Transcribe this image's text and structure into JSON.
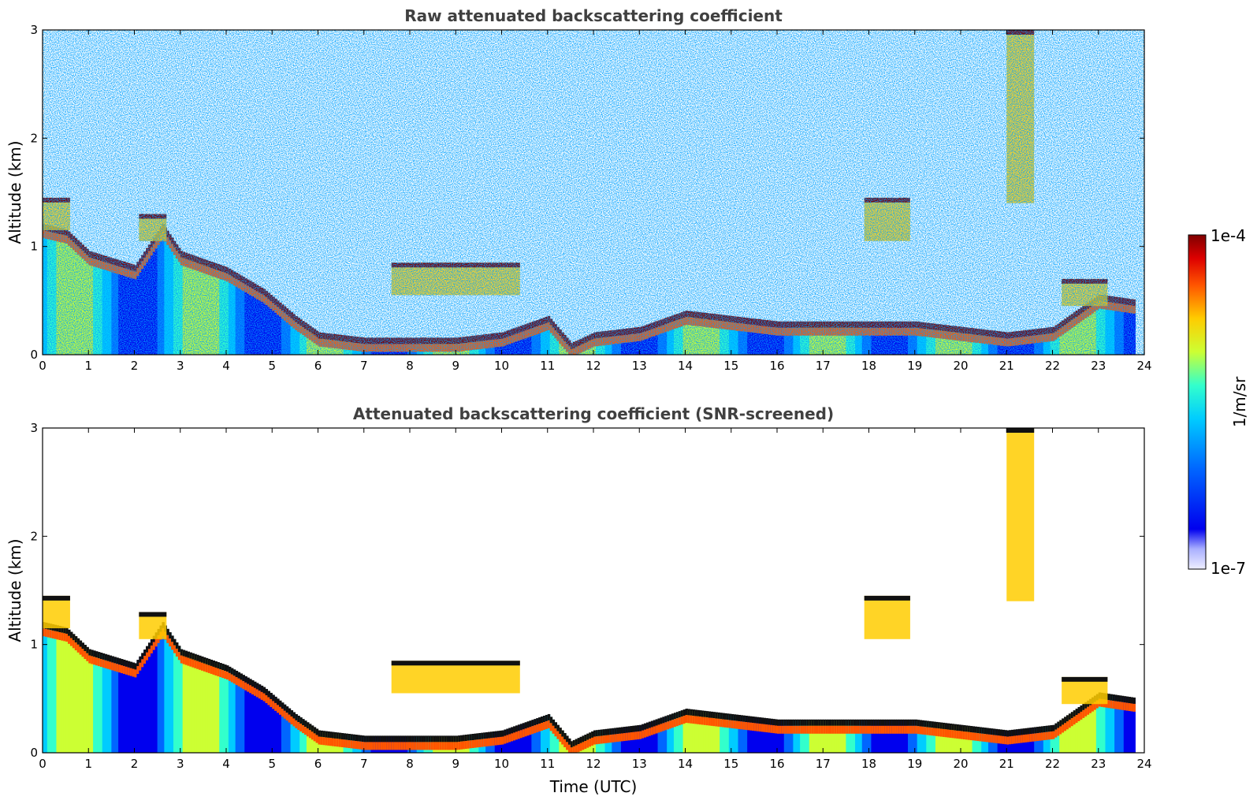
{
  "chart_data": [
    {
      "type": "heatmap",
      "title": "Raw attenuated backscattering coefficient",
      "xlabel": "",
      "ylabel": "Altitude (km)",
      "xlim": [
        0,
        24
      ],
      "ylim": [
        0,
        3
      ],
      "xticks": [
        "0",
        "1",
        "2",
        "3",
        "4",
        "5",
        "6",
        "7",
        "8",
        "9",
        "10",
        "11",
        "12",
        "13",
        "14",
        "15",
        "16",
        "17",
        "18",
        "19",
        "20",
        "21",
        "22",
        "23",
        "24"
      ],
      "yticks": [
        "0",
        "1",
        "2",
        "3"
      ],
      "noise": "high",
      "boundary_layer_top_km": [
        [
          0,
          1.2
        ],
        [
          0.5,
          1.15
        ],
        [
          1,
          0.95
        ],
        [
          2,
          0.82
        ],
        [
          2.6,
          1.2
        ],
        [
          3,
          0.95
        ],
        [
          4,
          0.8
        ],
        [
          4.8,
          0.6
        ],
        [
          5.5,
          0.35
        ],
        [
          6,
          0.2
        ],
        [
          7,
          0.15
        ],
        [
          8,
          0.15
        ],
        [
          9,
          0.15
        ],
        [
          10,
          0.2
        ],
        [
          11,
          0.35
        ],
        [
          11.5,
          0.1
        ],
        [
          12,
          0.2
        ],
        [
          13,
          0.25
        ],
        [
          14,
          0.4
        ],
        [
          15,
          0.35
        ],
        [
          16,
          0.3
        ],
        [
          17,
          0.3
        ],
        [
          18,
          0.3
        ],
        [
          19,
          0.3
        ],
        [
          20,
          0.25
        ],
        [
          21,
          0.2
        ],
        [
          22,
          0.25
        ],
        [
          23,
          0.55
        ],
        [
          23.8,
          0.5
        ]
      ],
      "cloud_layers": [
        {
          "t0": 0,
          "t1": 0.6,
          "base_km": 1.15,
          "top_km": 1.45
        },
        {
          "t0": 2.1,
          "t1": 2.7,
          "base_km": 1.05,
          "top_km": 1.3
        },
        {
          "t0": 7.6,
          "t1": 10.4,
          "base_km": 0.55,
          "top_km": 0.85
        },
        {
          "t0": 17.9,
          "t1": 18.9,
          "base_km": 1.05,
          "top_km": 1.45
        },
        {
          "t0": 21.0,
          "t1": 21.6,
          "base_km": 1.4,
          "top_km": 3.0
        },
        {
          "t0": 22.2,
          "t1": 23.2,
          "base_km": 0.45,
          "top_km": 0.7
        }
      ]
    },
    {
      "type": "heatmap",
      "title": "Attenuated backscattering coefficient (SNR-screened)",
      "xlabel": "Time (UTC)",
      "ylabel": "Altitude (km)",
      "xlim": [
        0,
        24
      ],
      "ylim": [
        0,
        3
      ],
      "xticks": [
        "0",
        "1",
        "2",
        "3",
        "4",
        "5",
        "6",
        "7",
        "8",
        "9",
        "10",
        "11",
        "12",
        "13",
        "14",
        "15",
        "16",
        "17",
        "18",
        "19",
        "20",
        "21",
        "22",
        "23",
        "24"
      ],
      "yticks": [
        "0",
        "1",
        "2",
        "3"
      ],
      "noise": "low",
      "boundary_layer_top_km": [
        [
          0,
          1.2
        ],
        [
          0.5,
          1.15
        ],
        [
          1,
          0.95
        ],
        [
          2,
          0.82
        ],
        [
          2.6,
          1.2
        ],
        [
          3,
          0.95
        ],
        [
          4,
          0.8
        ],
        [
          4.8,
          0.6
        ],
        [
          5.5,
          0.35
        ],
        [
          6,
          0.2
        ],
        [
          7,
          0.15
        ],
        [
          8,
          0.15
        ],
        [
          9,
          0.15
        ],
        [
          10,
          0.2
        ],
        [
          11,
          0.35
        ],
        [
          11.5,
          0.1
        ],
        [
          12,
          0.2
        ],
        [
          13,
          0.25
        ],
        [
          14,
          0.4
        ],
        [
          15,
          0.35
        ],
        [
          16,
          0.3
        ],
        [
          17,
          0.3
        ],
        [
          18,
          0.3
        ],
        [
          19,
          0.3
        ],
        [
          20,
          0.25
        ],
        [
          21,
          0.2
        ],
        [
          22,
          0.25
        ],
        [
          23,
          0.55
        ],
        [
          23.8,
          0.5
        ]
      ],
      "cloud_layers": [
        {
          "t0": 0,
          "t1": 0.6,
          "base_km": 1.15,
          "top_km": 1.45
        },
        {
          "t0": 2.1,
          "t1": 2.7,
          "base_km": 1.05,
          "top_km": 1.3
        },
        {
          "t0": 7.6,
          "t1": 10.4,
          "base_km": 0.55,
          "top_km": 0.85
        },
        {
          "t0": 17.9,
          "t1": 18.9,
          "base_km": 1.05,
          "top_km": 1.45
        },
        {
          "t0": 21.0,
          "t1": 21.6,
          "base_km": 1.4,
          "top_km": 3.0
        },
        {
          "t0": 22.2,
          "t1": 23.2,
          "base_km": 0.45,
          "top_km": 0.7
        }
      ]
    }
  ],
  "colorbar": {
    "label": "1/m/sr",
    "max_label": "1e-4",
    "min_label": "1e-7",
    "scale": "log",
    "colormap": [
      "#eeeeff",
      "#0000ee",
      "#0066ff",
      "#00ccff",
      "#33ffcc",
      "#ccff33",
      "#ffcc00",
      "#ff5500",
      "#dd0000",
      "#800000"
    ]
  }
}
